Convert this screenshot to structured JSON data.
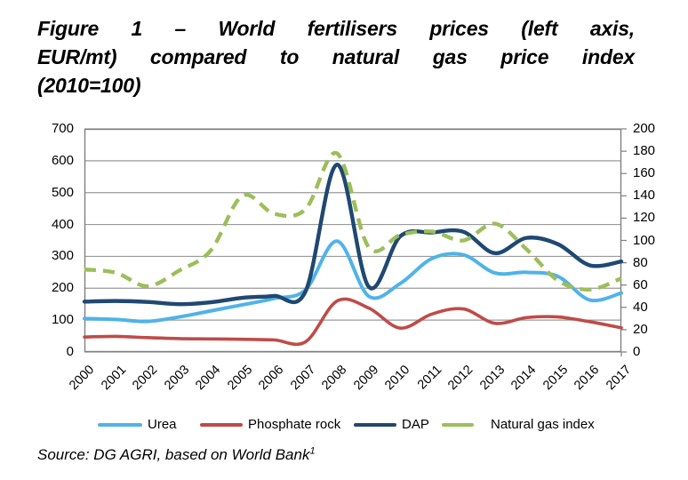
{
  "figure": {
    "title_lines": [
      "Figure 1 – World fertilisers prices (left axis,",
      "EUR/mt) compared to natural gas price index",
      "(2010=100)"
    ],
    "source_text": "Source: DG AGRI, based on World Bank",
    "source_superscript": "1"
  },
  "chart_data": {
    "type": "line",
    "title": "World fertilisers prices (left axis, EUR/mt) compared to natural gas price index (2010=100)",
    "x": [
      2000,
      2001,
      2002,
      2003,
      2004,
      2005,
      2006,
      2007,
      2008,
      2009,
      2010,
      2011,
      2012,
      2013,
      2014,
      2015,
      2016,
      2017
    ],
    "left_axis": {
      "min": 0,
      "max": 700,
      "step": 100,
      "unit": "EUR/mt"
    },
    "right_axis": {
      "min": 0,
      "max": 200,
      "step": 20,
      "unit": "index (2010=100)"
    },
    "grid": "horizontal",
    "legend_position": "bottom",
    "series": [
      {
        "name": "Urea",
        "axis": "left",
        "color": "#4FB3E8",
        "line_style": "solid",
        "values": [
          105,
          102,
          96,
          110,
          129,
          148,
          168,
          195,
          348,
          175,
          215,
          293,
          305,
          248,
          250,
          237,
          163,
          185
        ]
      },
      {
        "name": "Phosphate rock",
        "axis": "left",
        "color": "#BE4B48",
        "line_style": "solid",
        "values": [
          47,
          49,
          45,
          42,
          41,
          40,
          38,
          32,
          160,
          138,
          75,
          119,
          135,
          90,
          108,
          110,
          95,
          76
        ]
      },
      {
        "name": "DAP",
        "axis": "left",
        "color": "#1F4872",
        "line_style": "solid",
        "values": [
          158,
          160,
          157,
          150,
          156,
          170,
          176,
          190,
          588,
          205,
          363,
          375,
          377,
          310,
          358,
          338,
          272,
          284
        ]
      },
      {
        "name": "Natural gas index",
        "axis": "right",
        "color": "#9CBE5A",
        "line_style": "dashed",
        "values": [
          74,
          71,
          59,
          73,
          91,
          140,
          124,
          128,
          178,
          94,
          105,
          108,
          100,
          115,
          92,
          64,
          56,
          66
        ]
      }
    ],
    "colors": {
      "grid": "#9A9A9A",
      "border": "#7F7F7F",
      "text": "#000000"
    }
  }
}
